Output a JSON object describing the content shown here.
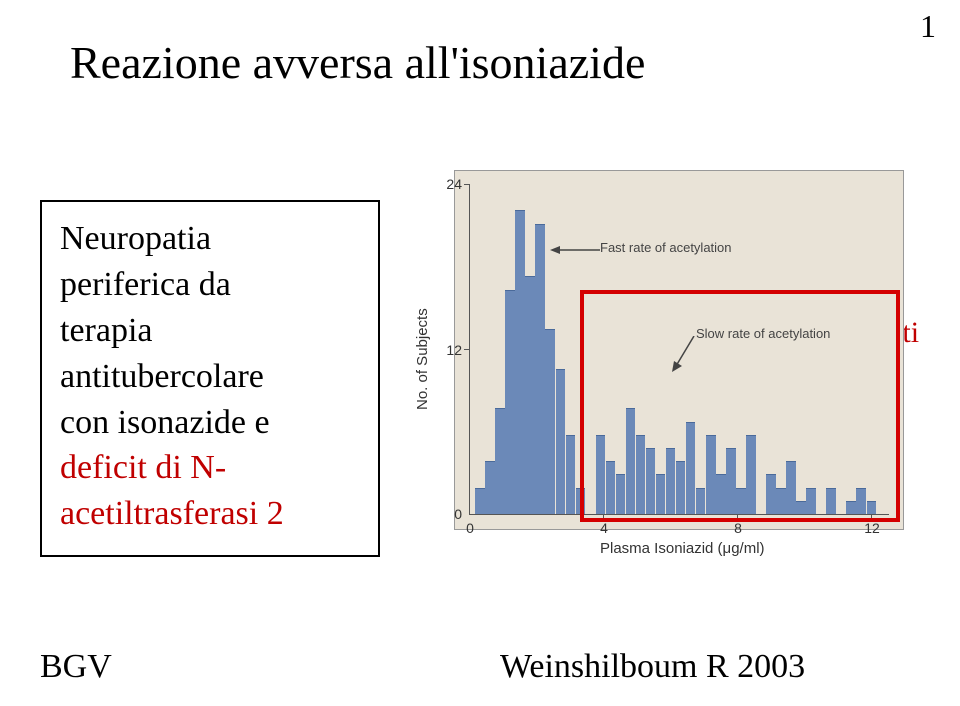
{
  "page_number": "1",
  "title": "Reazione avversa all'isoniazide",
  "textbox": {
    "line1": "Neuropatia",
    "line2": "periferica da",
    "line3": "terapia",
    "line4": "antitubercolare",
    "line5": "con isonazide e",
    "deficit1": "deficit di N-",
    "deficit2": "acetiltrasferasi 2"
  },
  "annotation": "Acetilatori lenti",
  "footer_left": "BGV",
  "footer_right": "Weinshilboum R 2003",
  "chart": {
    "type": "histogram",
    "y_label": "No. of Subjects",
    "x_label": "Plasma Isoniazid (μg/ml)",
    "y_ticks": [
      0,
      12,
      24
    ],
    "x_ticks": [
      0,
      4,
      8,
      12
    ],
    "xlim": [
      0,
      12.5
    ],
    "ylim": [
      0,
      25
    ],
    "bar_color": "#6b89b8",
    "background_color": "#e9e3d7",
    "grid_color": "#999999",
    "label_fontsize": 15,
    "tick_fontsize": 14,
    "fast_label": "Fast rate of acetylation",
    "slow_label": "Slow rate of acetylation",
    "redbox_color": "#d40000",
    "bins": [
      {
        "x": 0.3,
        "count": 2
      },
      {
        "x": 0.6,
        "count": 4
      },
      {
        "x": 0.9,
        "count": 8
      },
      {
        "x": 1.2,
        "count": 17
      },
      {
        "x": 1.5,
        "count": 23
      },
      {
        "x": 1.8,
        "count": 18
      },
      {
        "x": 2.1,
        "count": 22
      },
      {
        "x": 2.4,
        "count": 14
      },
      {
        "x": 2.7,
        "count": 11
      },
      {
        "x": 3.0,
        "count": 6
      },
      {
        "x": 3.3,
        "count": 2
      },
      {
        "x": 3.6,
        "count": 0
      },
      {
        "x": 3.9,
        "count": 6
      },
      {
        "x": 4.2,
        "count": 4
      },
      {
        "x": 4.5,
        "count": 3
      },
      {
        "x": 4.8,
        "count": 8
      },
      {
        "x": 5.1,
        "count": 6
      },
      {
        "x": 5.4,
        "count": 5
      },
      {
        "x": 5.7,
        "count": 3
      },
      {
        "x": 6.0,
        "count": 5
      },
      {
        "x": 6.3,
        "count": 4
      },
      {
        "x": 6.6,
        "count": 7
      },
      {
        "x": 6.9,
        "count": 2
      },
      {
        "x": 7.2,
        "count": 6
      },
      {
        "x": 7.5,
        "count": 3
      },
      {
        "x": 7.8,
        "count": 5
      },
      {
        "x": 8.1,
        "count": 2
      },
      {
        "x": 8.4,
        "count": 6
      },
      {
        "x": 8.7,
        "count": 0
      },
      {
        "x": 9.0,
        "count": 3
      },
      {
        "x": 9.3,
        "count": 2
      },
      {
        "x": 9.6,
        "count": 4
      },
      {
        "x": 9.9,
        "count": 1
      },
      {
        "x": 10.2,
        "count": 2
      },
      {
        "x": 10.5,
        "count": 0
      },
      {
        "x": 10.8,
        "count": 2
      },
      {
        "x": 11.1,
        "count": 0
      },
      {
        "x": 11.4,
        "count": 1
      },
      {
        "x": 11.7,
        "count": 2
      },
      {
        "x": 12.0,
        "count": 1
      }
    ]
  }
}
